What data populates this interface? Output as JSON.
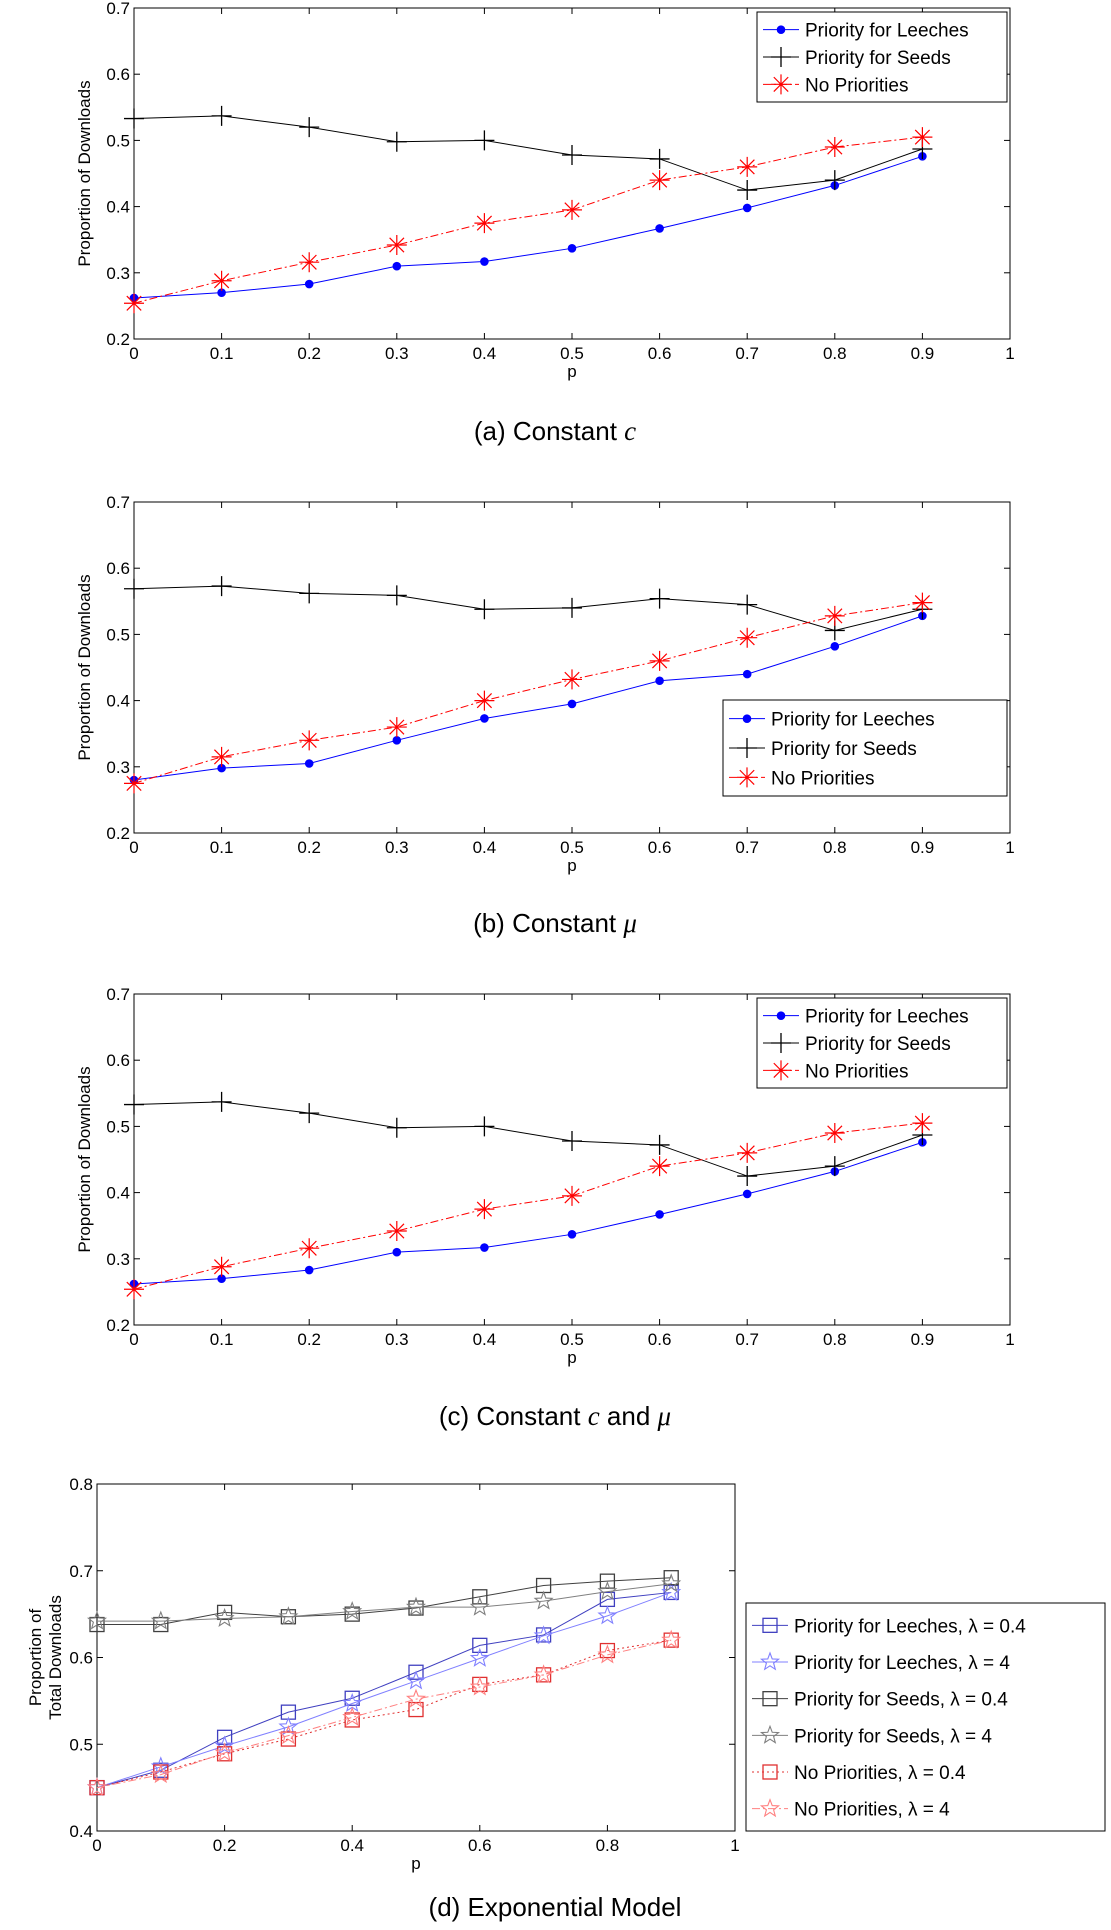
{
  "chart_data": [
    {
      "id": "a",
      "type": "line",
      "caption_prefix": "(a)  Constant ",
      "caption_math": "c",
      "caption_suffix": "",
      "xlabel": "p",
      "ylabel": "Proportion of Downloads",
      "ylabel_lines": [
        "Proportion of Downloads"
      ],
      "xlim": [
        0,
        1
      ],
      "ylim": [
        0.2,
        0.7
      ],
      "xticks": [
        "0",
        "0.1",
        "0.2",
        "0.3",
        "0.4",
        "0.5",
        "0.6",
        "0.7",
        "0.8",
        "0.9",
        "1"
      ],
      "yticks": [
        "0.2",
        "0.3",
        "0.4",
        "0.5",
        "0.6",
        "0.7"
      ],
      "legend_position": "top-right",
      "x": [
        0,
        0.1,
        0.2,
        0.3,
        0.4,
        0.5,
        0.6,
        0.7,
        0.8,
        0.9
      ],
      "series": [
        {
          "name": "Priority for Leeches",
          "color": "#0000ff",
          "marker": "dot",
          "dash": "solid",
          "values": [
            0.262,
            0.27,
            0.283,
            0.31,
            0.317,
            0.337,
            0.367,
            0.398,
            0.432,
            0.476
          ]
        },
        {
          "name": "Priority for Seeds",
          "color": "#000000",
          "marker": "plus",
          "dash": "solid",
          "values": [
            0.533,
            0.537,
            0.52,
            0.498,
            0.5,
            0.478,
            0.472,
            0.425,
            0.44,
            0.487
          ]
        },
        {
          "name": "No Priorities",
          "color": "#ff0000",
          "marker": "asterisk",
          "dash": "dashdot",
          "values": [
            0.254,
            0.288,
            0.316,
            0.342,
            0.375,
            0.395,
            0.44,
            0.46,
            0.49,
            0.505
          ]
        }
      ]
    },
    {
      "id": "b",
      "type": "line",
      "caption_prefix": "(b)  Constant ",
      "caption_math": "μ",
      "caption_suffix": "",
      "xlabel": "p",
      "ylabel": "Proportion of Downloads",
      "ylabel_lines": [
        "Proportion of Downloads"
      ],
      "xlim": [
        0,
        1
      ],
      "ylim": [
        0.2,
        0.7
      ],
      "xticks": [
        "0",
        "0.1",
        "0.2",
        "0.3",
        "0.4",
        "0.5",
        "0.6",
        "0.7",
        "0.8",
        "0.9",
        "1"
      ],
      "yticks": [
        "0.2",
        "0.3",
        "0.4",
        "0.5",
        "0.6",
        "0.7"
      ],
      "legend_position": "center-right",
      "x": [
        0,
        0.1,
        0.2,
        0.3,
        0.4,
        0.5,
        0.6,
        0.7,
        0.8,
        0.9
      ],
      "series": [
        {
          "name": "Priority for Leeches",
          "color": "#0000ff",
          "marker": "dot",
          "dash": "solid",
          "values": [
            0.28,
            0.298,
            0.305,
            0.34,
            0.373,
            0.395,
            0.43,
            0.44,
            0.482,
            0.528
          ]
        },
        {
          "name": "Priority for Seeds",
          "color": "#000000",
          "marker": "plus",
          "dash": "solid",
          "values": [
            0.569,
            0.573,
            0.562,
            0.559,
            0.538,
            0.54,
            0.554,
            0.545,
            0.506,
            0.538
          ]
        },
        {
          "name": "No Priorities",
          "color": "#ff0000",
          "marker": "asterisk",
          "dash": "dashdot",
          "values": [
            0.275,
            0.315,
            0.34,
            0.36,
            0.4,
            0.432,
            0.46,
            0.495,
            0.528,
            0.548
          ]
        }
      ]
    },
    {
      "id": "c",
      "type": "line",
      "caption_prefix": "(c)  Constant ",
      "caption_math": "c",
      "caption_suffix": " and ",
      "caption_math2": "μ",
      "xlabel": "p",
      "ylabel": "Proportion of Downloads",
      "ylabel_lines": [
        "Proportion of Downloads"
      ],
      "xlim": [
        0,
        1
      ],
      "ylim": [
        0.2,
        0.7
      ],
      "xticks": [
        "0",
        "0.1",
        "0.2",
        "0.3",
        "0.4",
        "0.5",
        "0.6",
        "0.7",
        "0.8",
        "0.9",
        "1"
      ],
      "yticks": [
        "0.2",
        "0.3",
        "0.4",
        "0.5",
        "0.6",
        "0.7"
      ],
      "legend_position": "top-right",
      "x": [
        0,
        0.1,
        0.2,
        0.3,
        0.4,
        0.5,
        0.6,
        0.7,
        0.8,
        0.9
      ],
      "series": [
        {
          "name": "Priority for Leeches",
          "color": "#0000ff",
          "marker": "dot",
          "dash": "solid",
          "values": [
            0.262,
            0.27,
            0.283,
            0.31,
            0.317,
            0.337,
            0.367,
            0.398,
            0.432,
            0.476
          ]
        },
        {
          "name": "Priority for Seeds",
          "color": "#000000",
          "marker": "plus",
          "dash": "solid",
          "values": [
            0.533,
            0.537,
            0.52,
            0.498,
            0.5,
            0.478,
            0.472,
            0.425,
            0.44,
            0.487
          ]
        },
        {
          "name": "No Priorities",
          "color": "#ff0000",
          "marker": "asterisk",
          "dash": "dashdot",
          "values": [
            0.254,
            0.288,
            0.316,
            0.342,
            0.375,
            0.395,
            0.44,
            0.46,
            0.49,
            0.505
          ]
        }
      ]
    },
    {
      "id": "d",
      "type": "line",
      "caption_prefix": "(d)  Exponential Model",
      "caption_math": "",
      "caption_suffix": "",
      "xlabel": "p",
      "ylabel": "Proportion of Total Downloads",
      "ylabel_lines": [
        "Proportion of",
        "Total Downloads"
      ],
      "xlim": [
        0,
        1
      ],
      "ylim": [
        0.4,
        0.8
      ],
      "xticks": [
        "0",
        "0.2",
        "0.4",
        "0.6",
        "0.8",
        "1"
      ],
      "yticks": [
        "0.4",
        "0.5",
        "0.6",
        "0.7",
        "0.8"
      ],
      "legend_position": "outside-right",
      "x": [
        0,
        0.1,
        0.2,
        0.3,
        0.4,
        0.5,
        0.6,
        0.7,
        0.8,
        0.9
      ],
      "series": [
        {
          "name": "Priority for Leeches, λ = 0.4",
          "color": "#4040c0",
          "marker": "square",
          "dash": "solid",
          "values": [
            0.45,
            0.47,
            0.508,
            0.537,
            0.553,
            0.583,
            0.614,
            0.626,
            0.667,
            0.675
          ]
        },
        {
          "name": "Priority for Leeches, λ = 4",
          "color": "#8080ff",
          "marker": "star",
          "dash": "solid",
          "values": [
            0.45,
            0.474,
            0.498,
            0.52,
            0.547,
            0.573,
            0.599,
            0.625,
            0.648,
            0.675
          ]
        },
        {
          "name": "Priority for Seeds, λ = 0.4",
          "color": "#404040",
          "marker": "square",
          "dash": "solid",
          "values": [
            0.638,
            0.638,
            0.652,
            0.647,
            0.65,
            0.657,
            0.67,
            0.683,
            0.688,
            0.692
          ]
        },
        {
          "name": "Priority for Seeds, λ = 4",
          "color": "#808080",
          "marker": "star",
          "dash": "solid",
          "values": [
            0.642,
            0.642,
            0.645,
            0.647,
            0.653,
            0.658,
            0.658,
            0.665,
            0.676,
            0.685
          ]
        },
        {
          "name": "No Priorities, λ = 0.4",
          "color": "#e03030",
          "marker": "square",
          "dash": "dotted",
          "values": [
            0.45,
            0.468,
            0.489,
            0.506,
            0.528,
            0.54,
            0.569,
            0.58,
            0.608,
            0.62
          ]
        },
        {
          "name": "No Priorities, λ = 4",
          "color": "#ff8080",
          "marker": "star",
          "dash": "dashdot",
          "values": [
            0.45,
            0.465,
            0.49,
            0.51,
            0.531,
            0.552,
            0.566,
            0.58,
            0.603,
            0.62
          ]
        }
      ]
    }
  ]
}
